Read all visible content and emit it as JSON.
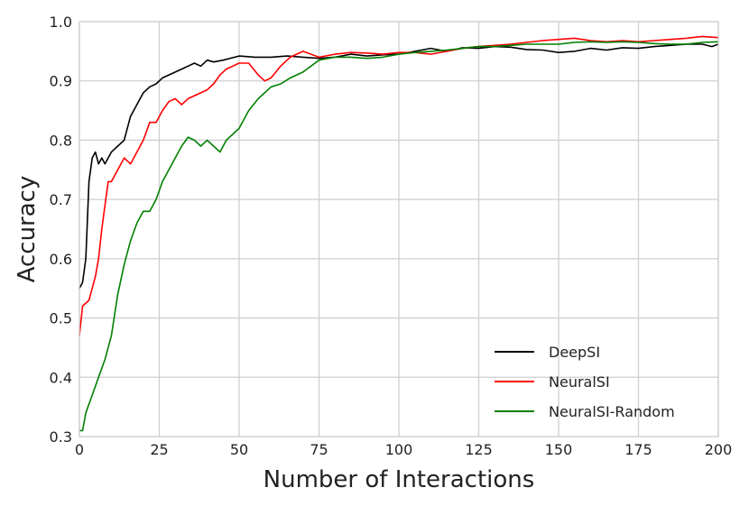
{
  "chart_data": {
    "type": "line",
    "title": "",
    "xlabel": "Number of Interactions",
    "ylabel": "Accuracy",
    "xlim": [
      0,
      200
    ],
    "ylim": [
      0.3,
      1.0
    ],
    "xticks": [
      0,
      25,
      50,
      75,
      100,
      125,
      150,
      175,
      200
    ],
    "yticks": [
      0.3,
      0.4,
      0.5,
      0.6,
      0.7,
      0.8,
      0.9,
      1.0
    ],
    "xtick_labels": [
      "0",
      "25",
      "50",
      "75",
      "100",
      "125",
      "150",
      "175",
      "200"
    ],
    "ytick_labels": [
      "0.3",
      "0.4",
      "0.5",
      "0.6",
      "0.7",
      "0.8",
      "0.9",
      "1.0"
    ],
    "grid": true,
    "legend_position": "lower-right",
    "series": [
      {
        "name": "DeepSI",
        "color": "#000000",
        "x": [
          0,
          1,
          2,
          3,
          4,
          5,
          6,
          7,
          8,
          10,
          12,
          14,
          16,
          18,
          20,
          22,
          24,
          26,
          28,
          30,
          32,
          34,
          36,
          38,
          40,
          42,
          45,
          50,
          55,
          60,
          65,
          70,
          75,
          80,
          85,
          90,
          95,
          100,
          105,
          110,
          115,
          120,
          125,
          130,
          135,
          140,
          145,
          150,
          155,
          160,
          165,
          170,
          175,
          180,
          185,
          190,
          195,
          198,
          200
        ],
        "y": [
          0.55,
          0.56,
          0.6,
          0.73,
          0.77,
          0.78,
          0.76,
          0.77,
          0.76,
          0.78,
          0.79,
          0.8,
          0.84,
          0.86,
          0.88,
          0.89,
          0.895,
          0.905,
          0.91,
          0.915,
          0.92,
          0.925,
          0.93,
          0.925,
          0.935,
          0.932,
          0.935,
          0.942,
          0.94,
          0.94,
          0.942,
          0.94,
          0.938,
          0.94,
          0.945,
          0.942,
          0.944,
          0.945,
          0.95,
          0.955,
          0.95,
          0.956,
          0.955,
          0.958,
          0.957,
          0.953,
          0.952,
          0.948,
          0.95,
          0.955,
          0.952,
          0.956,
          0.955,
          0.958,
          0.96,
          0.962,
          0.962,
          0.958,
          0.962
        ]
      },
      {
        "name": "NeuralSI",
        "color": "#ff0000",
        "x": [
          0,
          1,
          3,
          5,
          6,
          7,
          8,
          9,
          10,
          12,
          14,
          16,
          18,
          20,
          22,
          24,
          26,
          28,
          30,
          32,
          34,
          36,
          38,
          40,
          42,
          44,
          46,
          48,
          50,
          53,
          56,
          58,
          60,
          63,
          66,
          70,
          75,
          80,
          85,
          90,
          95,
          100,
          105,
          110,
          115,
          120,
          125,
          130,
          135,
          140,
          145,
          150,
          155,
          160,
          165,
          170,
          175,
          180,
          185,
          190,
          195,
          200
        ],
        "y": [
          0.47,
          0.52,
          0.53,
          0.57,
          0.6,
          0.65,
          0.69,
          0.73,
          0.73,
          0.75,
          0.77,
          0.76,
          0.78,
          0.8,
          0.83,
          0.83,
          0.85,
          0.865,
          0.87,
          0.86,
          0.87,
          0.875,
          0.88,
          0.885,
          0.895,
          0.91,
          0.92,
          0.925,
          0.93,
          0.93,
          0.91,
          0.9,
          0.905,
          0.925,
          0.94,
          0.95,
          0.94,
          0.945,
          0.948,
          0.947,
          0.945,
          0.948,
          0.948,
          0.945,
          0.95,
          0.955,
          0.958,
          0.96,
          0.962,
          0.965,
          0.968,
          0.97,
          0.972,
          0.968,
          0.966,
          0.968,
          0.966,
          0.968,
          0.97,
          0.972,
          0.975,
          0.973
        ]
      },
      {
        "name": "NeuralSI-Random",
        "color": "#008000",
        "x": [
          0,
          1,
          2,
          4,
          6,
          8,
          10,
          12,
          14,
          16,
          18,
          20,
          22,
          24,
          26,
          28,
          30,
          32,
          34,
          36,
          38,
          40,
          42,
          44,
          46,
          48,
          50,
          53,
          56,
          60,
          63,
          66,
          70,
          75,
          80,
          85,
          90,
          95,
          100,
          105,
          110,
          115,
          120,
          125,
          130,
          135,
          140,
          145,
          150,
          155,
          160,
          165,
          170,
          175,
          180,
          185,
          190,
          195,
          200
        ],
        "y": [
          0.31,
          0.31,
          0.34,
          0.37,
          0.4,
          0.43,
          0.47,
          0.54,
          0.59,
          0.63,
          0.66,
          0.68,
          0.68,
          0.7,
          0.73,
          0.75,
          0.77,
          0.79,
          0.805,
          0.8,
          0.79,
          0.8,
          0.79,
          0.78,
          0.8,
          0.81,
          0.82,
          0.85,
          0.87,
          0.89,
          0.895,
          0.905,
          0.915,
          0.935,
          0.94,
          0.94,
          0.938,
          0.94,
          0.945,
          0.948,
          0.95,
          0.952,
          0.955,
          0.958,
          0.958,
          0.96,
          0.962,
          0.962,
          0.962,
          0.965,
          0.966,
          0.965,
          0.966,
          0.965,
          0.963,
          0.962,
          0.962,
          0.965,
          0.966
        ]
      }
    ]
  }
}
